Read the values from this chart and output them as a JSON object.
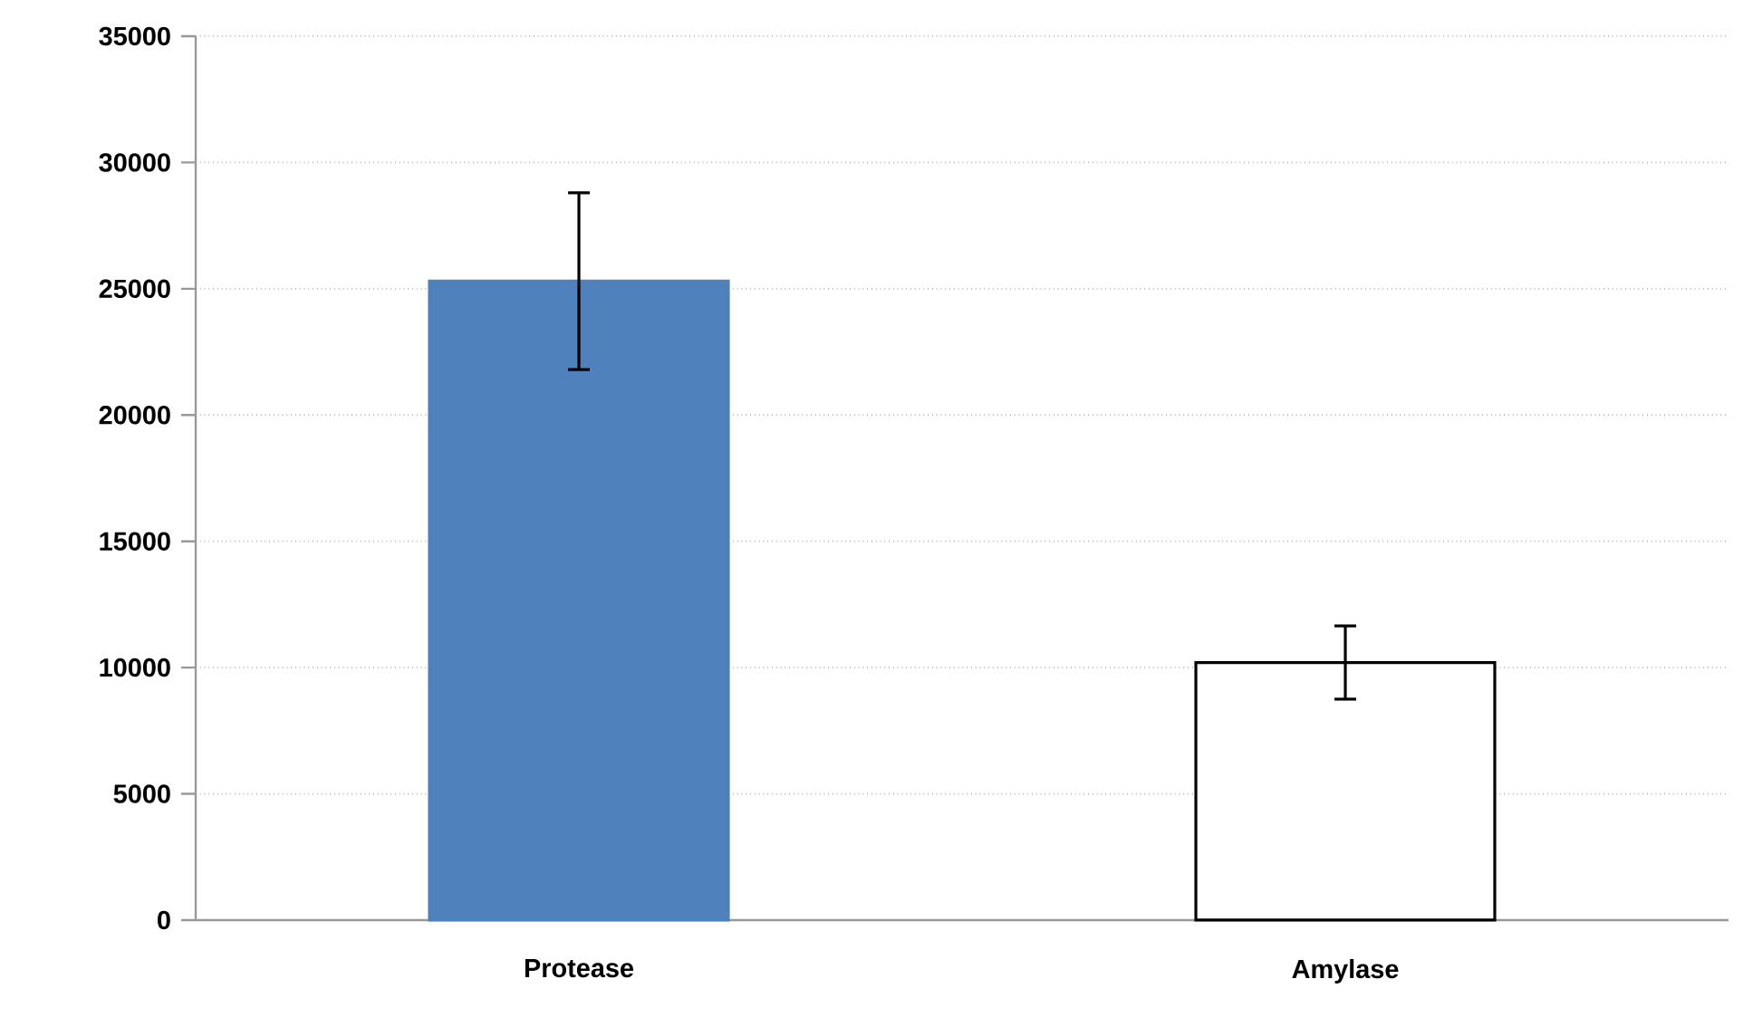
{
  "chart_data": {
    "type": "bar",
    "categories": [
      "Protease",
      "Amylase"
    ],
    "values": [
      25300,
      10200
    ],
    "errors": [
      3500,
      1450
    ],
    "colors": [
      "#4f81bd",
      "#ffffff"
    ],
    "ylim": [
      0,
      35000
    ],
    "yticks": [
      0,
      5000,
      10000,
      15000,
      20000,
      25000,
      30000,
      35000
    ],
    "grid": "y"
  }
}
